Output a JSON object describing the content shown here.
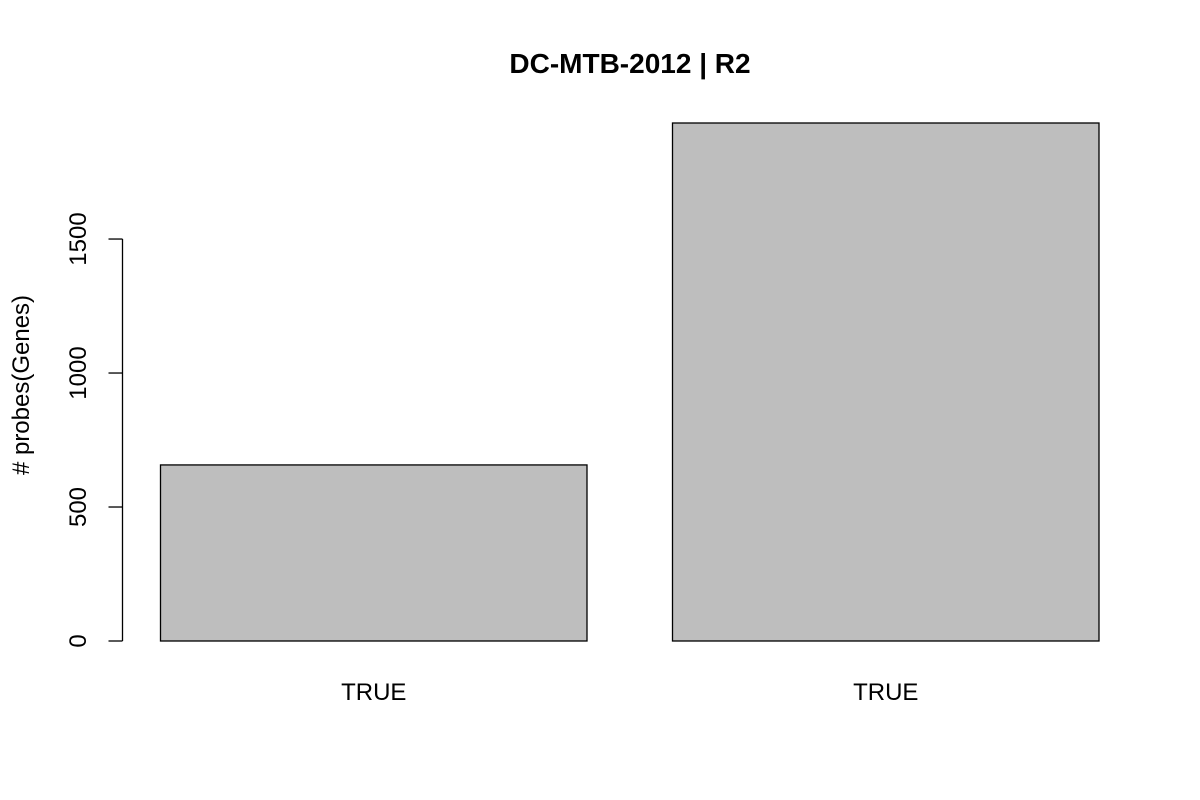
{
  "chart_data": {
    "type": "bar",
    "title": "DC-MTB-2012 | R2",
    "xlabel": "",
    "ylabel": "# probes(Genes)",
    "categories": [
      "TRUE",
      "TRUE"
    ],
    "values": [
      657,
      1933
    ],
    "ylim": [
      0,
      1933
    ],
    "yticks": [
      0,
      500,
      1000,
      1500
    ],
    "bar_color": "#bebebe",
    "grid": false,
    "legend": "none"
  }
}
